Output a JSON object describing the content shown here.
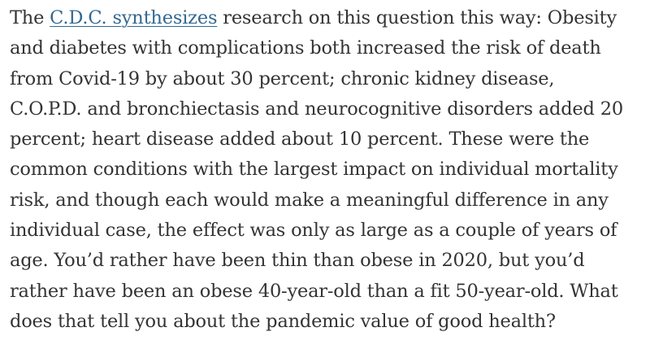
{
  "article": {
    "paragraph": {
      "lead_text": "The ",
      "link_text": "C.D.C. synthesizes",
      "first_line_rest": " research on this question this way: Obesity",
      "lines": [
        "and diabetes with complications both increased the risk of death",
        "from Covid-19 by about 30 percent; chronic kidney disease,",
        "C.O.P.D. and bronchiectasis and neurocognitive disorders added 20",
        "percent; heart disease added about 10 percent. These were the",
        "common conditions with the largest impact on individual mortality",
        "risk, and though each would make a meaningful difference in any",
        "individual case, the effect was only as large as a couple of years of",
        "age. You’d rather have been thin than obese in 2020, but you’d",
        "rather have been an obese 40-year-old than a fit 50-year-old. What",
        "does that tell you about the pandemic value of good health?"
      ]
    },
    "colors": {
      "text": "#333333",
      "link": "#326891",
      "background": "#ffffff"
    }
  }
}
